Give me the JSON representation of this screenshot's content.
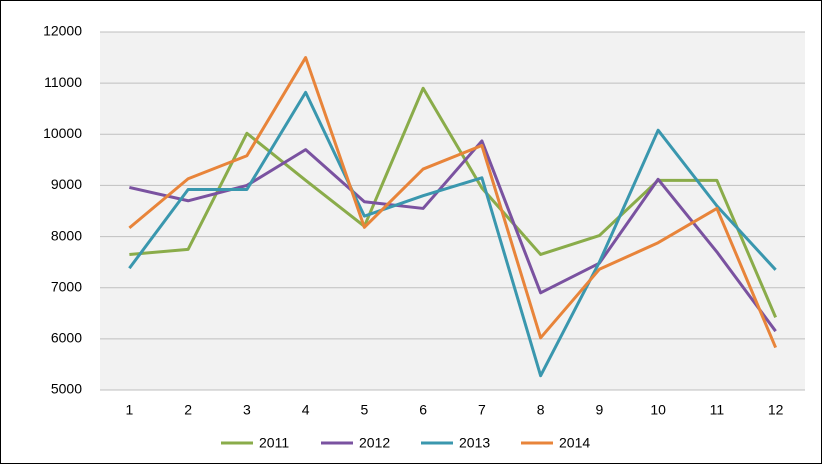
{
  "chart_data": {
    "type": "line",
    "categories": [
      "1",
      "2",
      "3",
      "4",
      "5",
      "6",
      "7",
      "8",
      "9",
      "10",
      "11",
      "12"
    ],
    "series": [
      {
        "name": "2011",
        "color": "#8aac4a",
        "values": [
          7650,
          7750,
          10020,
          9100,
          8200,
          10900,
          8950,
          7650,
          8020,
          9100,
          9100,
          6420
        ]
      },
      {
        "name": "2012",
        "color": "#7a52a0",
        "values": [
          8960,
          8700,
          9000,
          9700,
          8680,
          8550,
          9870,
          6900,
          7480,
          9120,
          7700,
          6150
        ]
      },
      {
        "name": "2013",
        "color": "#3a97ae",
        "values": [
          7380,
          8920,
          8920,
          10820,
          8400,
          8800,
          9150,
          5280,
          7500,
          10080,
          8600,
          7350
        ]
      },
      {
        "name": "2014",
        "color": "#e8843a",
        "values": [
          8170,
          9130,
          9580,
          11500,
          8180,
          9320,
          9780,
          6020,
          7360,
          7880,
          8550,
          5830
        ]
      }
    ],
    "ylim": [
      5000,
      12000
    ],
    "yticks": [
      5000,
      6000,
      7000,
      8000,
      9000,
      10000,
      11000,
      12000
    ],
    "grid": true,
    "legend": "bottom"
  }
}
